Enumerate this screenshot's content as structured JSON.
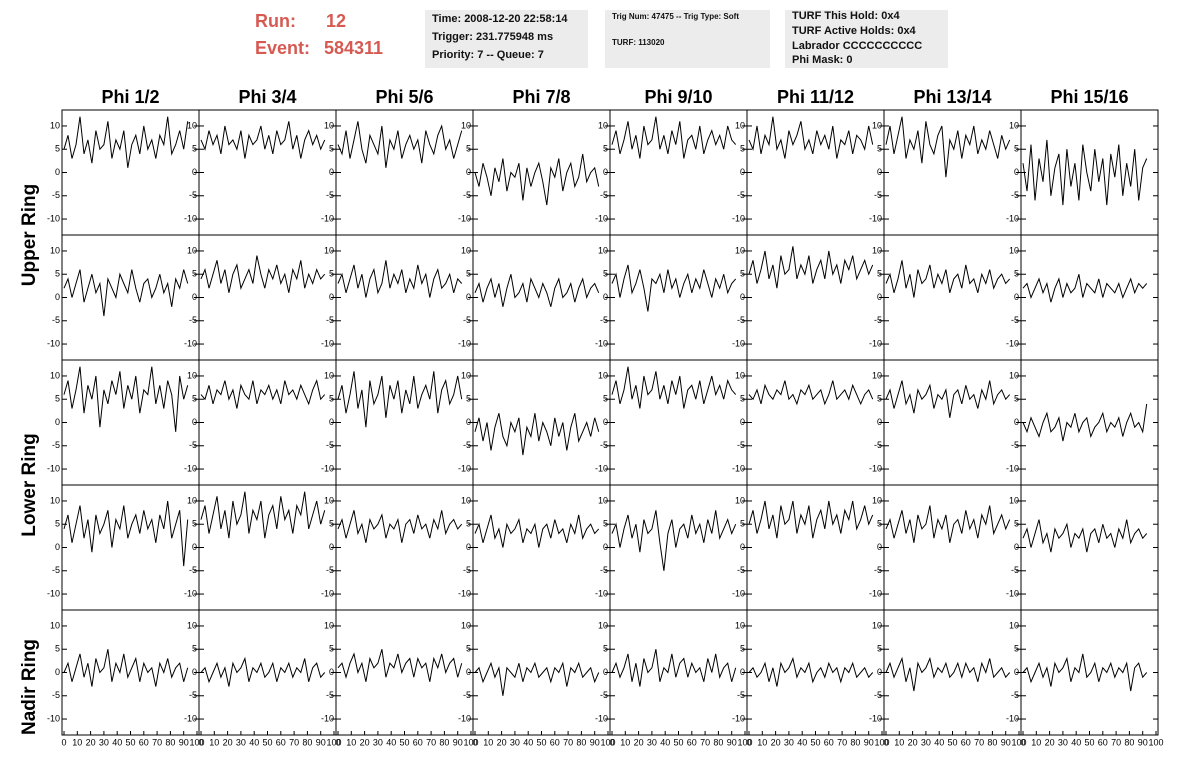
{
  "header": {
    "run_label": "Run:",
    "run": 12,
    "event_label": "Event:",
    "event": 584311,
    "box1": [
      "Time: 2008-12-20 22:58:14",
      "Trigger: 231.775948 ms",
      "Priority: 7 -- Queue: 7"
    ],
    "box2": [
      "Trig Num: 47475 -- Trig Type: Soft",
      "TURF: 113020"
    ],
    "box3": [
      "TURF This Hold: 0x4",
      "TURF Active Holds: 0x4",
      "Labrador CCCCCCCCCC",
      "Phi Mask: 0"
    ]
  },
  "columns": [
    "Phi 1/2",
    "Phi 3/4",
    "Phi 5/6",
    "Phi 7/8",
    "Phi 9/10",
    "Phi 11/12",
    "Phi 13/14",
    "Phi 15/16"
  ],
  "rows": [
    "Upper Ring",
    "Lower Ring",
    "Nadir Ring"
  ],
  "axis": {
    "ylim": [
      -13,
      13
    ],
    "yticks": [
      -10,
      -5,
      0,
      5,
      10
    ],
    "xlim": [
      0,
      100
    ],
    "xticks": [
      0,
      10,
      20,
      30,
      40,
      50,
      60,
      70,
      80,
      90,
      100
    ]
  },
  "x": [
    0,
    3,
    6,
    9,
    12,
    15,
    18,
    21,
    24,
    27,
    30,
    33,
    36,
    39,
    42,
    45,
    48,
    51,
    54,
    57,
    60,
    63,
    66,
    69,
    72,
    75,
    78,
    81,
    84,
    87,
    90,
    93
  ],
  "panels": [
    [
      5,
      8,
      3,
      6,
      12,
      4,
      7,
      2,
      9,
      5,
      6,
      11,
      3,
      7,
      5,
      9,
      1,
      6,
      8,
      4,
      10,
      5,
      7,
      3,
      8,
      6,
      12,
      4,
      6,
      9,
      5,
      11
    ],
    [
      7,
      5,
      9,
      6,
      8,
      4,
      10,
      6,
      7,
      5,
      9,
      3,
      8,
      6,
      7,
      10,
      5,
      8,
      4,
      9,
      6,
      7,
      11,
      5,
      8,
      3,
      7,
      9,
      6,
      8,
      5,
      7
    ],
    [
      6,
      4,
      9,
      3,
      7,
      11,
      5,
      2,
      8,
      6,
      4,
      10,
      1,
      7,
      5,
      9,
      3,
      6,
      8,
      5,
      7,
      2,
      9,
      6,
      4,
      8,
      10,
      5,
      7,
      3,
      6,
      9
    ],
    [
      0,
      -3,
      2,
      -1,
      -5,
      1,
      -2,
      3,
      -4,
      0,
      -1,
      2,
      -6,
      1,
      -3,
      0,
      2,
      -2,
      -7,
      1,
      -1,
      3,
      -4,
      0,
      2,
      -3,
      -1,
      4,
      -2,
      0,
      1,
      -3
    ],
    [
      6,
      9,
      4,
      7,
      11,
      5,
      8,
      3,
      10,
      6,
      7,
      12,
      5,
      8,
      4,
      9,
      6,
      11,
      3,
      7,
      8,
      5,
      10,
      4,
      7,
      9,
      6,
      8,
      5,
      10,
      7,
      6
    ],
    [
      7,
      5,
      10,
      4,
      8,
      6,
      12,
      5,
      7,
      3,
      9,
      6,
      8,
      11,
      5,
      7,
      4,
      9,
      6,
      8,
      5,
      10,
      3,
      7,
      6,
      9,
      4,
      8,
      7,
      5,
      10,
      6
    ],
    [
      6,
      10,
      4,
      8,
      12,
      3,
      7,
      5,
      9,
      2,
      11,
      6,
      4,
      8,
      10,
      -1,
      7,
      5,
      9,
      3,
      8,
      6,
      10,
      4,
      7,
      5,
      9,
      6,
      3,
      8,
      5,
      7
    ],
    [
      2,
      -4,
      6,
      -6,
      3,
      -2,
      7,
      -5,
      1,
      4,
      -7,
      5,
      -3,
      2,
      -6,
      6,
      0,
      -4,
      5,
      -2,
      3,
      -7,
      4,
      -1,
      6,
      -5,
      2,
      -3,
      5,
      -6,
      1,
      3
    ],
    [
      2,
      4,
      0,
      3,
      6,
      -1,
      2,
      5,
      1,
      3,
      -4,
      4,
      2,
      0,
      5,
      3,
      1,
      6,
      2,
      -1,
      3,
      4,
      0,
      2,
      5,
      1,
      3,
      -2,
      4,
      2,
      6,
      3
    ],
    [
      4,
      6,
      2,
      5,
      8,
      3,
      6,
      1,
      5,
      7,
      2,
      4,
      6,
      3,
      9,
      5,
      2,
      6,
      4,
      7,
      3,
      5,
      1,
      6,
      4,
      8,
      2,
      5,
      3,
      6,
      4,
      5
    ],
    [
      3,
      5,
      1,
      4,
      7,
      2,
      5,
      0,
      4,
      6,
      1,
      3,
      8,
      2,
      5,
      3,
      6,
      1,
      4,
      2,
      7,
      3,
      5,
      0,
      4,
      6,
      2,
      3,
      5,
      1,
      4,
      3
    ],
    [
      1,
      3,
      -1,
      2,
      4,
      0,
      3,
      -2,
      2,
      5,
      0,
      1,
      3,
      -1,
      4,
      2,
      0,
      3,
      1,
      -2,
      2,
      4,
      0,
      1,
      3,
      -1,
      2,
      4,
      0,
      2,
      3,
      1
    ],
    [
      3,
      5,
      0,
      4,
      7,
      1,
      3,
      6,
      2,
      -3,
      4,
      3,
      5,
      1,
      6,
      2,
      4,
      0,
      3,
      5,
      1,
      4,
      2,
      6,
      3,
      0,
      4,
      2,
      5,
      1,
      3,
      4
    ],
    [
      5,
      8,
      3,
      6,
      10,
      4,
      7,
      2,
      9,
      5,
      6,
      11,
      4,
      7,
      5,
      9,
      3,
      6,
      8,
      4,
      10,
      5,
      7,
      3,
      8,
      6,
      9,
      4,
      6,
      8,
      5,
      7
    ],
    [
      3,
      5,
      1,
      4,
      8,
      2,
      5,
      0,
      6,
      3,
      4,
      7,
      2,
      5,
      3,
      6,
      1,
      4,
      5,
      2,
      7,
      3,
      4,
      1,
      5,
      3,
      6,
      2,
      4,
      5,
      3,
      4
    ],
    [
      2,
      3,
      0,
      2,
      4,
      1,
      3,
      -1,
      2,
      4,
      0,
      3,
      1,
      2,
      5,
      0,
      3,
      2,
      1,
      4,
      0,
      3,
      2,
      1,
      3,
      0,
      2,
      4,
      1,
      3,
      2,
      3
    ],
    [
      6,
      9,
      3,
      7,
      12,
      2,
      8,
      5,
      10,
      -1,
      7,
      4,
      9,
      6,
      11,
      3,
      8,
      5,
      10,
      2,
      7,
      6,
      12,
      4,
      8,
      3,
      9,
      6,
      -2,
      10,
      5,
      8
    ],
    [
      6,
      5,
      8,
      4,
      7,
      6,
      9,
      5,
      7,
      3,
      8,
      6,
      5,
      9,
      4,
      7,
      6,
      8,
      5,
      7,
      4,
      9,
      6,
      7,
      5,
      8,
      6,
      4,
      7,
      9,
      5,
      6
    ],
    [
      5,
      8,
      2,
      6,
      11,
      3,
      7,
      -1,
      9,
      4,
      6,
      10,
      1,
      8,
      5,
      9,
      2,
      7,
      4,
      10,
      3,
      6,
      8,
      5,
      11,
      2,
      7,
      9,
      4,
      6,
      10,
      5
    ],
    [
      -2,
      1,
      -4,
      0,
      -6,
      -1,
      2,
      -3,
      -5,
      0,
      -2,
      1,
      -7,
      -1,
      -3,
      2,
      -4,
      0,
      -2,
      -5,
      1,
      -3,
      0,
      -6,
      -1,
      2,
      -4,
      -2,
      0,
      -3,
      1,
      -2
    ],
    [
      6,
      9,
      4,
      7,
      12,
      5,
      8,
      3,
      10,
      6,
      7,
      11,
      5,
      8,
      4,
      9,
      6,
      10,
      3,
      7,
      8,
      5,
      9,
      4,
      7,
      10,
      6,
      8,
      5,
      9,
      7,
      6
    ],
    [
      6,
      5,
      7,
      4,
      8,
      6,
      5,
      7,
      6,
      9,
      5,
      6,
      4,
      7,
      6,
      8,
      5,
      6,
      7,
      4,
      6,
      9,
      5,
      6,
      7,
      5,
      8,
      6,
      4,
      6,
      7,
      5
    ],
    [
      5,
      7,
      3,
      6,
      9,
      4,
      6,
      2,
      7,
      5,
      6,
      8,
      3,
      6,
      5,
      7,
      1,
      6,
      7,
      4,
      8,
      5,
      6,
      3,
      7,
      5,
      9,
      4,
      6,
      7,
      5,
      6
    ],
    [
      0,
      -2,
      1,
      -1,
      -3,
      0,
      2,
      -2,
      -1,
      1,
      -4,
      0,
      -1,
      2,
      -2,
      0,
      1,
      -3,
      -1,
      0,
      2,
      -2,
      0,
      -1,
      1,
      -3,
      0,
      2,
      -1,
      0,
      -2,
      4
    ],
    [
      4,
      7,
      1,
      5,
      9,
      2,
      6,
      -1,
      7,
      3,
      5,
      8,
      0,
      6,
      4,
      9,
      2,
      5,
      7,
      3,
      8,
      4,
      6,
      1,
      7,
      4,
      10,
      2,
      5,
      8,
      -4,
      6
    ],
    [
      6,
      9,
      3,
      7,
      11,
      4,
      8,
      2,
      10,
      5,
      7,
      12,
      3,
      8,
      6,
      10,
      2,
      7,
      9,
      4,
      11,
      6,
      8,
      3,
      9,
      7,
      12,
      4,
      7,
      10,
      5,
      8
    ],
    [
      4,
      6,
      2,
      5,
      8,
      3,
      5,
      1,
      6,
      4,
      5,
      7,
      2,
      5,
      4,
      6,
      1,
      5,
      6,
      3,
      7,
      4,
      5,
      2,
      6,
      4,
      8,
      3,
      5,
      6,
      4,
      5
    ],
    [
      3,
      5,
      1,
      4,
      7,
      2,
      4,
      0,
      5,
      3,
      4,
      6,
      1,
      4,
      3,
      5,
      0,
      4,
      5,
      2,
      6,
      3,
      4,
      1,
      5,
      3,
      7,
      2,
      4,
      5,
      3,
      4
    ],
    [
      3,
      5,
      0,
      4,
      7,
      2,
      5,
      -1,
      6,
      3,
      4,
      8,
      1,
      -5,
      3,
      6,
      0,
      4,
      5,
      2,
      7,
      3,
      5,
      1,
      6,
      3,
      8,
      2,
      4,
      6,
      3,
      5
    ],
    [
      5,
      8,
      3,
      6,
      10,
      4,
      7,
      2,
      9,
      5,
      6,
      10,
      3,
      7,
      5,
      9,
      2,
      6,
      8,
      4,
      10,
      5,
      7,
      3,
      8,
      6,
      10,
      4,
      6,
      9,
      5,
      7
    ],
    [
      4,
      6,
      2,
      5,
      8,
      3,
      6,
      1,
      7,
      4,
      5,
      9,
      2,
      6,
      4,
      7,
      1,
      5,
      6,
      3,
      8,
      4,
      6,
      2,
      7,
      5,
      9,
      3,
      5,
      7,
      4,
      6
    ],
    [
      2,
      4,
      0,
      3,
      6,
      1,
      3,
      -1,
      4,
      2,
      3,
      5,
      0,
      3,
      2,
      4,
      -1,
      3,
      4,
      1,
      5,
      2,
      3,
      0,
      4,
      2,
      6,
      1,
      3,
      4,
      2,
      3
    ],
    [
      0,
      2,
      -2,
      1,
      4,
      -1,
      2,
      -3,
      3,
      0,
      1,
      5,
      -2,
      2,
      0,
      4,
      -1,
      1,
      3,
      -2,
      2,
      0,
      1,
      -3,
      2,
      0,
      3,
      -1,
      1,
      2,
      -2,
      1
    ],
    [
      0,
      1,
      -2,
      0,
      2,
      -1,
      1,
      -3,
      2,
      0,
      1,
      3,
      -2,
      1,
      0,
      2,
      -1,
      0,
      2,
      -2,
      1,
      0,
      2,
      -1,
      1,
      0,
      3,
      -2,
      1,
      2,
      -1,
      0
    ],
    [
      1,
      2,
      -1,
      2,
      4,
      0,
      2,
      -2,
      3,
      1,
      2,
      5,
      -1,
      2,
      1,
      4,
      0,
      2,
      3,
      -1,
      3,
      1,
      2,
      -2,
      3,
      1,
      4,
      0,
      2,
      3,
      -1,
      2
    ],
    [
      0,
      1,
      -2,
      0,
      2,
      -1,
      1,
      -5,
      1,
      0,
      -1,
      2,
      -2,
      1,
      0,
      2,
      -1,
      0,
      1,
      -2,
      1,
      0,
      2,
      -3,
      1,
      0,
      2,
      -1,
      0,
      1,
      -2,
      0
    ],
    [
      0,
      2,
      -1,
      1,
      4,
      -2,
      2,
      -3,
      3,
      0,
      1,
      5,
      -2,
      1,
      0,
      4,
      -1,
      2,
      3,
      -1,
      2,
      0,
      1,
      -2,
      3,
      0,
      4,
      -1,
      1,
      2,
      -2,
      1
    ],
    [
      0,
      1,
      -1,
      0,
      2,
      -2,
      1,
      -3,
      2,
      0,
      1,
      3,
      -1,
      1,
      0,
      2,
      -2,
      0,
      1,
      -1,
      2,
      0,
      1,
      -2,
      1,
      0,
      2,
      -1,
      0,
      1,
      -1,
      0
    ],
    [
      0,
      2,
      -1,
      1,
      3,
      -2,
      1,
      -4,
      2,
      0,
      1,
      3,
      -1,
      1,
      0,
      2,
      -1,
      0,
      2,
      -1,
      2,
      0,
      1,
      -2,
      2,
      0,
      3,
      -1,
      0,
      1,
      -1,
      0
    ],
    [
      0,
      1,
      -2,
      0,
      2,
      -1,
      1,
      -3,
      2,
      0,
      1,
      3,
      -2,
      1,
      0,
      4,
      -1,
      0,
      2,
      -2,
      1,
      0,
      2,
      -1,
      1,
      0,
      2,
      -4,
      1,
      2,
      -1,
      0
    ]
  ]
}
